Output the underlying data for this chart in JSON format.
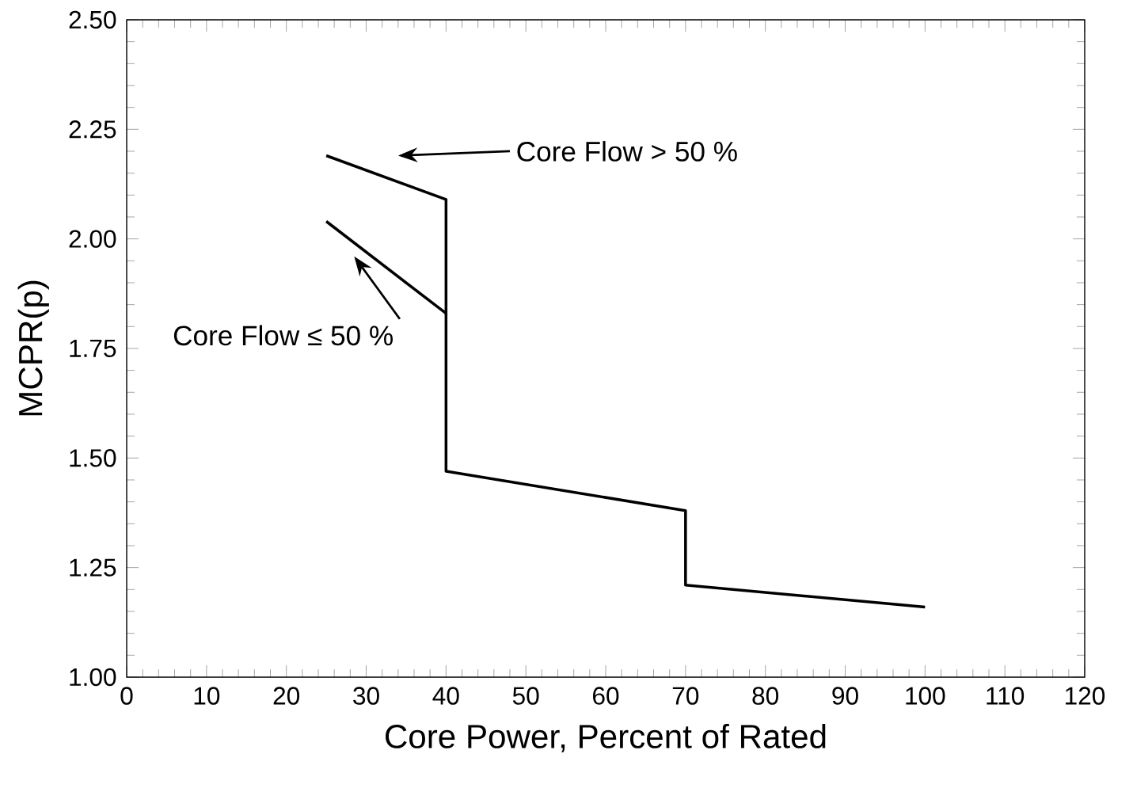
{
  "chart_data": {
    "type": "line",
    "xlabel": "Core Power, Percent of Rated",
    "ylabel": "MCPR(p)",
    "xlim": [
      0,
      120
    ],
    "xticks": [
      0,
      10,
      20,
      30,
      40,
      50,
      60,
      70,
      80,
      90,
      100,
      110,
      120
    ],
    "ylim": [
      1.0,
      2.5
    ],
    "yticks": [
      {
        "value": 1.0,
        "label": "1.00"
      },
      {
        "value": 1.25,
        "label": "1.25"
      },
      {
        "value": 1.5,
        "label": "1.50"
      },
      {
        "value": 1.75,
        "label": "1.75"
      },
      {
        "value": 2.0,
        "label": "2.00"
      },
      {
        "value": 2.25,
        "label": "2.25"
      },
      {
        "value": 2.5,
        "label": "2.50"
      }
    ],
    "series": [
      {
        "color": "#000000",
        "x": [
          25,
          40,
          40,
          70,
          70,
          100
        ],
        "values": [
          2.19,
          2.09,
          1.47,
          1.38,
          1.21,
          1.16
        ]
      },
      {
        "color": "#000000",
        "x": [
          25,
          40
        ],
        "values": [
          2.04,
          1.83
        ]
      }
    ],
    "annotations": [
      "Core Flow > 50 %",
      "Core Flow ≤ 50 %"
    ],
    "grid": false,
    "marker": "none",
    "line_style": "solid"
  }
}
